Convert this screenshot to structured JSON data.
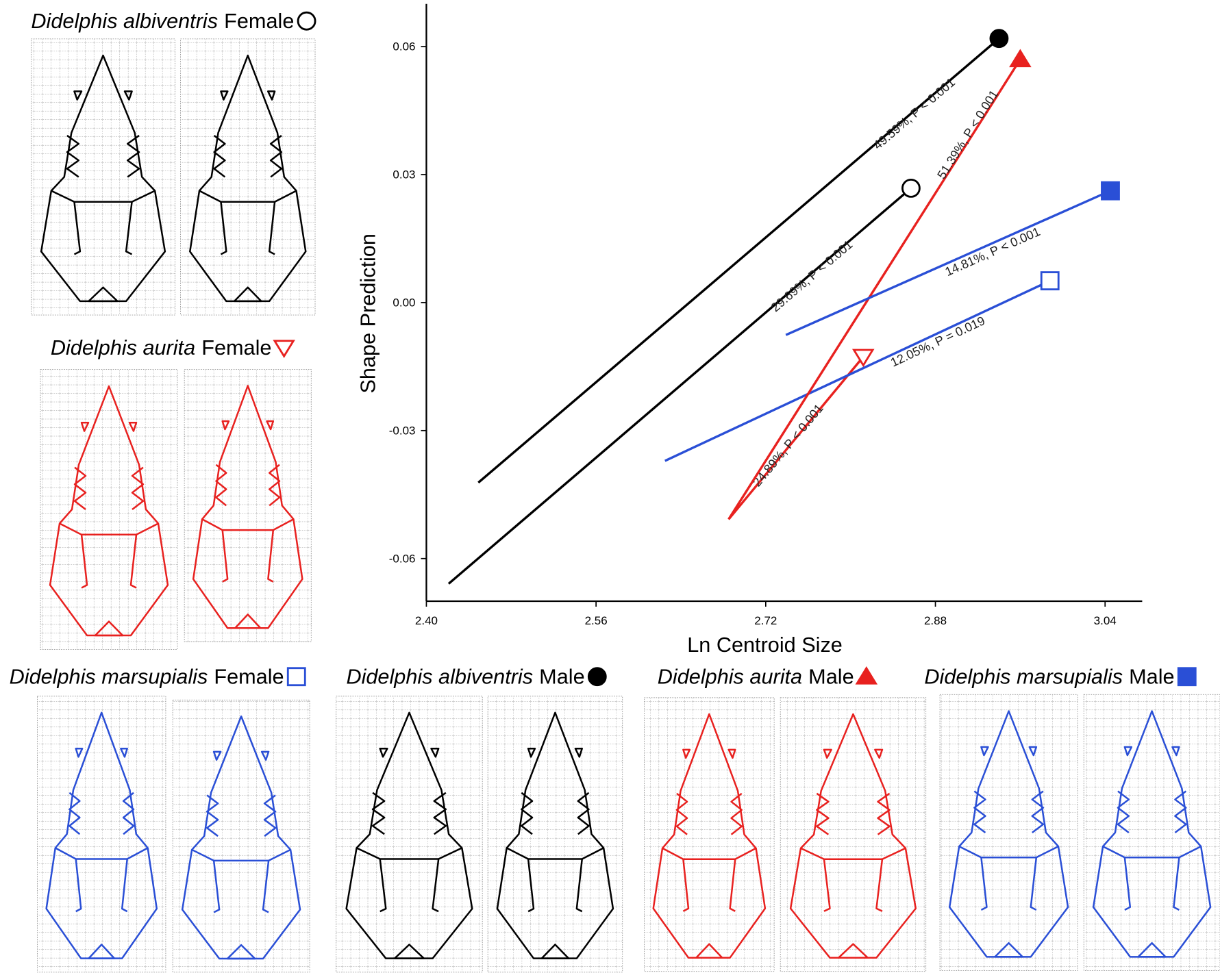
{
  "chart_data": {
    "type": "line",
    "x_label": "Ln Centroid Size",
    "y_label": "Shape Prediction",
    "xlim": [
      2.4,
      3.075
    ],
    "ylim": [
      -0.07,
      0.07
    ],
    "xticks": [
      {
        "value": 2.4,
        "label": "2.40"
      },
      2.56,
      2.72,
      2.88,
      3.04
    ],
    "yticks": [
      -0.06,
      -0.03,
      {
        "value": 0,
        "label": "0.00"
      },
      0.03,
      0.06
    ],
    "series": [
      {
        "species": "Didelphis albiventris",
        "sex": "Female",
        "color": "#000000",
        "marker": "circle",
        "filled": false,
        "x": [
          2.421,
          2.857
        ],
        "values": [
          -0.0659,
          0.0268
        ],
        "label": "29.69%, P < 0.001"
      },
      {
        "species": "Didelphis aurita",
        "sex": "Female",
        "color": "#e8211f",
        "marker": "triangle-down",
        "filled": false,
        "x": [
          2.685,
          2.812
        ],
        "values": [
          -0.0508,
          -0.0127
        ],
        "label": "24.89%, P < 0.001"
      },
      {
        "species": "Didelphis marsupialis",
        "sex": "Female",
        "color": "#2a4fd6",
        "marker": "square",
        "filled": false,
        "x": [
          2.625,
          2.988
        ],
        "values": [
          -0.0371,
          0.0051
        ],
        "label": "12.05%, P = 0.019"
      },
      {
        "species": "Didelphis albiventris",
        "sex": "Male",
        "color": "#000000",
        "marker": "circle",
        "filled": true,
        "x": [
          2.449,
          2.94
        ],
        "values": [
          -0.0422,
          0.0619
        ],
        "label": "49.59%, P < 0.001"
      },
      {
        "species": "Didelphis aurita",
        "sex": "Male",
        "color": "#e8211f",
        "marker": "triangle-up",
        "filled": true,
        "x": [
          2.685,
          2.96
        ],
        "values": [
          -0.0508,
          0.057
        ],
        "label": "51.39%, P < 0.001"
      },
      {
        "species": "Didelphis marsupialis",
        "sex": "Male",
        "color": "#2a4fd6",
        "marker": "square",
        "filled": true,
        "x": [
          2.739,
          3.045
        ],
        "values": [
          -0.0076,
          0.0262
        ],
        "label": "14.81%, P < 0.001"
      }
    ]
  }
}
